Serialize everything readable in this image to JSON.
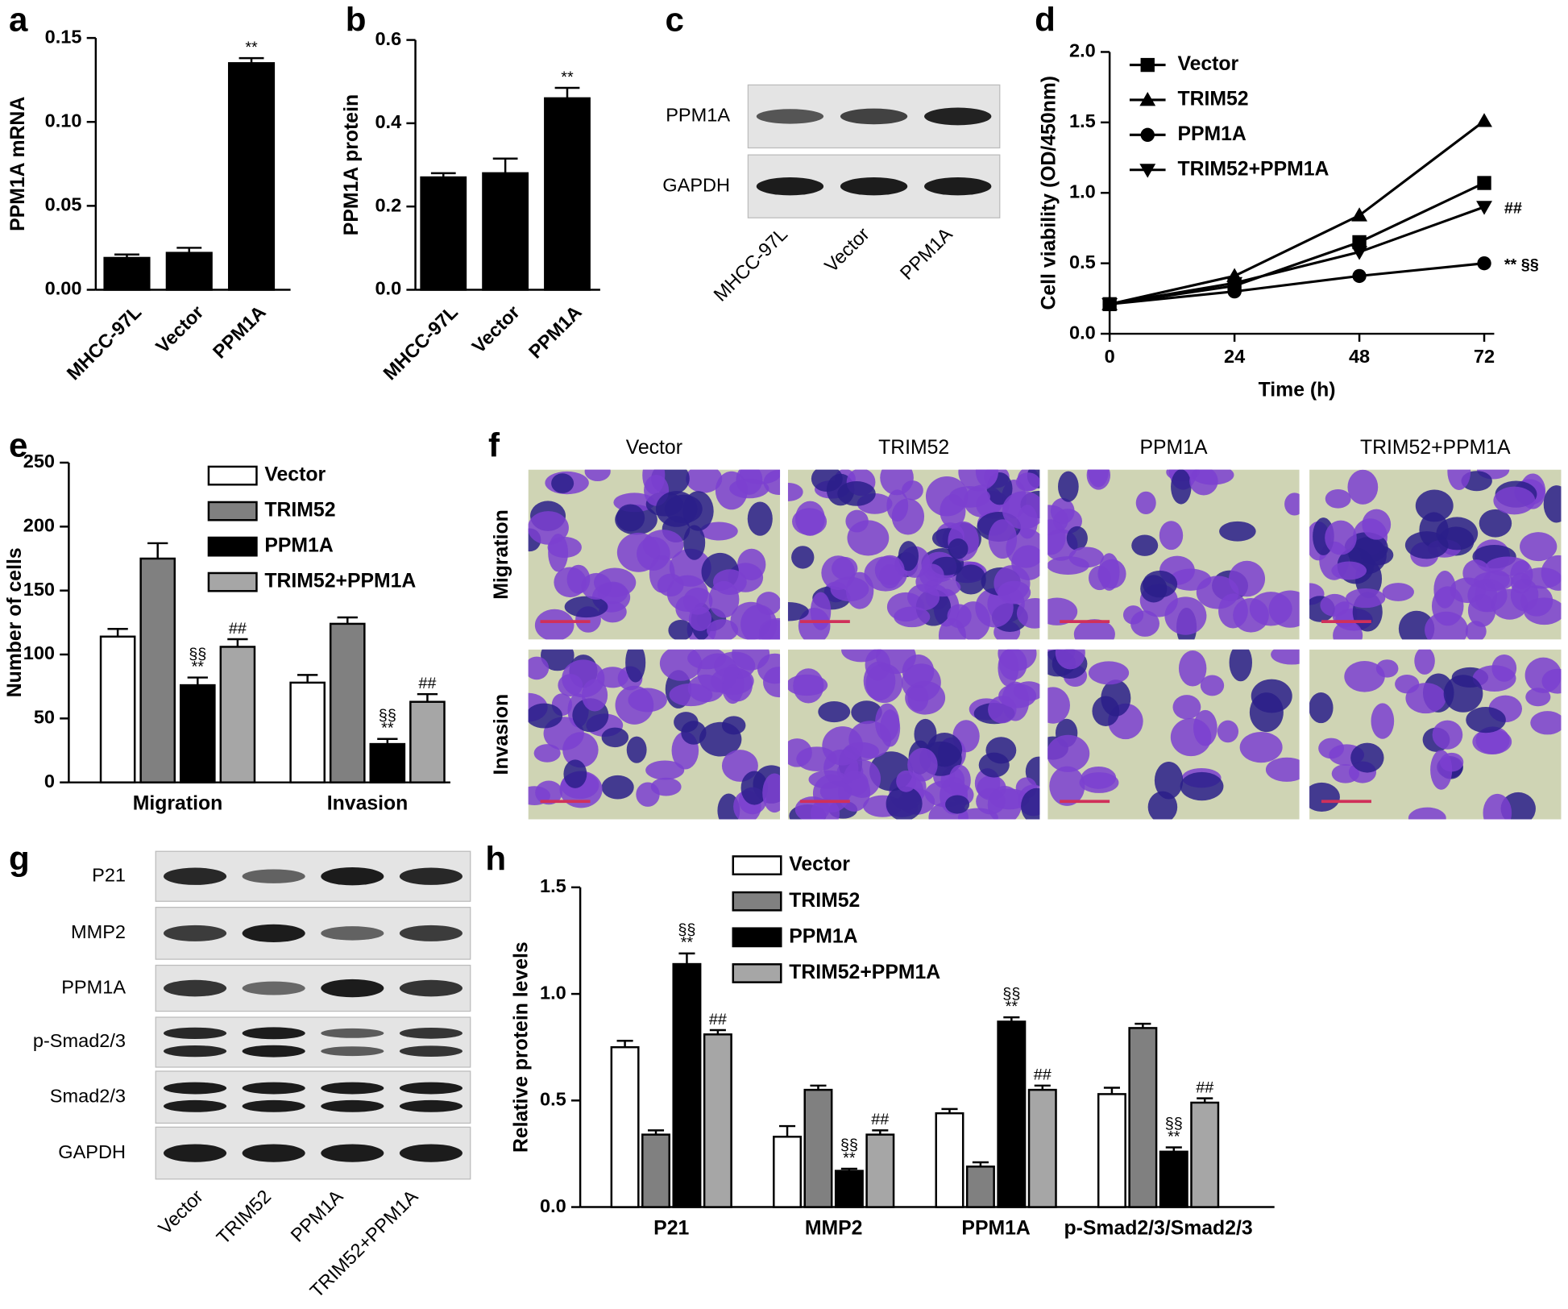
{
  "chart_data": [
    {
      "type": "bar",
      "label": "a",
      "ylabel": "PPM1A mRNA",
      "categories": [
        "MHCC-97L",
        "Vector",
        "PPM1A"
      ],
      "values": [
        0.019,
        0.022,
        0.135
      ],
      "errors": [
        0.002,
        0.003,
        0.003
      ],
      "annotations": [
        null,
        null,
        [
          "**"
        ]
      ],
      "color": "#000000",
      "ylim": [
        0,
        0.15
      ],
      "yticks": [
        {
          "value": 0,
          "label": "0.00"
        },
        0.05,
        {
          "value": 0.1,
          "label": "0.10"
        },
        0.15
      ]
    },
    {
      "type": "bar",
      "label": "b",
      "ylabel": "PPM1A protein",
      "categories": [
        "MHCC-97L",
        "Vector",
        "PPM1A"
      ],
      "values": [
        0.27,
        0.28,
        0.46
      ],
      "errors": [
        0.01,
        0.035,
        0.025
      ],
      "annotations": [
        null,
        null,
        [
          "**"
        ]
      ],
      "color": "#000000",
      "ylim": [
        0,
        0.6
      ],
      "yticks": [
        {
          "value": 0,
          "label": "0.0"
        },
        0.2,
        0.4,
        0.6
      ]
    },
    {
      "type": "line",
      "label": "d",
      "xlabel": "Time (h)",
      "ylabel": "Cell viability (OD/450nm)",
      "x": [
        0,
        24,
        48,
        72
      ],
      "xlim": [
        0,
        72
      ],
      "xticks": [
        0,
        24,
        48,
        72
      ],
      "ylim": [
        0,
        2
      ],
      "yticks": [
        {
          "value": 0,
          "label": "0.0"
        },
        0.5,
        {
          "value": 1,
          "label": "1.0"
        },
        1.5,
        {
          "value": 2,
          "label": "2.0"
        }
      ],
      "series": [
        {
          "name": "Vector",
          "color": "#000000",
          "marker": "square",
          "values": [
            0.21,
            0.34,
            0.65,
            1.07
          ]
        },
        {
          "name": "TRIM52",
          "color": "#000000",
          "marker": "triangle",
          "values": [
            0.21,
            0.41,
            0.84,
            1.51
          ]
        },
        {
          "name": "PPM1A",
          "color": "#000000",
          "marker": "circle",
          "values": [
            0.21,
            0.3,
            0.41,
            0.5
          ],
          "end_label": "** §§"
        },
        {
          "name": "TRIM52+PPM1A",
          "color": "#000000",
          "marker": "triangle-down",
          "values": [
            0.21,
            0.36,
            0.58,
            0.9
          ],
          "end_label": "##"
        }
      ]
    },
    {
      "type": "grouped-bar",
      "label": "e",
      "ylabel": "Number of cells",
      "categories": [
        "Migration",
        "Invasion"
      ],
      "ylim": [
        0,
        250
      ],
      "yticks": [
        0,
        50,
        100,
        150,
        200,
        250
      ],
      "series": [
        {
          "name": "Vector",
          "color": "#ffffff",
          "values": [
            114,
            78
          ],
          "errors": [
            6,
            6
          ]
        },
        {
          "name": "TRIM52",
          "color": "#808080",
          "values": [
            175,
            124
          ],
          "errors": [
            12,
            5
          ]
        },
        {
          "name": "PPM1A",
          "color": "#000000",
          "values": [
            76,
            30
          ],
          "errors": [
            6,
            4
          ],
          "annotations": [
            [
              "§§",
              "**"
            ],
            [
              "§§",
              "**"
            ]
          ]
        },
        {
          "name": "TRIM52+PPM1A",
          "color": "#a6a6a6",
          "values": [
            106,
            63
          ],
          "errors": [
            6,
            6
          ],
          "annotations": [
            [
              "##"
            ],
            [
              "##"
            ]
          ]
        }
      ]
    },
    {
      "type": "grouped-bar",
      "label": "h",
      "ylabel": "Relative protein levels",
      "categories": [
        "P21",
        "MMP2",
        "PPM1A",
        "p-Smad2/3/Smad2/3"
      ],
      "ylim": [
        0,
        1.5
      ],
      "yticks": [
        {
          "value": 0,
          "label": "0.0"
        },
        0.5,
        {
          "value": 1,
          "label": "1.0"
        },
        1.5
      ],
      "series": [
        {
          "name": "Vector",
          "color": "#ffffff",
          "values": [
            0.75,
            0.33,
            0.44,
            0.53
          ],
          "errors": [
            0.03,
            0.05,
            0.02,
            0.03
          ]
        },
        {
          "name": "TRIM52",
          "color": "#808080",
          "values": [
            0.34,
            0.55,
            0.19,
            0.84
          ],
          "errors": [
            0.02,
            0.02,
            0.02,
            0.02
          ]
        },
        {
          "name": "PPM1A",
          "color": "#000000",
          "values": [
            1.14,
            0.17,
            0.87,
            0.26
          ],
          "errors": [
            0.05,
            0.01,
            0.02,
            0.02
          ],
          "annotations": [
            [
              "§§",
              "**"
            ],
            [
              "§§",
              "**"
            ],
            [
              "§§",
              "**"
            ],
            [
              "§§",
              "**"
            ]
          ]
        },
        {
          "name": "TRIM52+PPM1A",
          "color": "#a6a6a6",
          "values": [
            0.81,
            0.34,
            0.55,
            0.49
          ],
          "errors": [
            0.02,
            0.02,
            0.02,
            0.02
          ],
          "annotations": [
            [
              "##"
            ],
            [
              "##"
            ],
            [
              "##"
            ],
            [
              "##"
            ]
          ]
        }
      ]
    }
  ],
  "blots": [
    {
      "label": "c",
      "rows": [
        "PPM1A",
        "GAPDH"
      ],
      "lanes": [
        "MHCC-97L",
        "Vector",
        "PPM1A"
      ]
    },
    {
      "label": "g",
      "rows": [
        "P21",
        "MMP2",
        "PPM1A",
        "p-Smad2/3",
        "Smad2/3",
        "GAPDH"
      ],
      "lanes": [
        "Vector",
        "TRIM52",
        "PPM1A",
        "TRIM52+PPM1A"
      ]
    }
  ],
  "images": {
    "label": "f",
    "columns": [
      "Vector",
      "TRIM52",
      "PPM1A",
      "TRIM52+PPM1A"
    ],
    "rows": [
      "Migration",
      "Invasion"
    ]
  }
}
